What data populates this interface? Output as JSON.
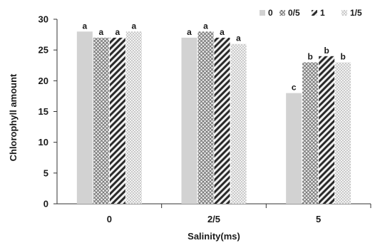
{
  "chart_data": {
    "type": "bar",
    "title": "",
    "xlabel": "Salinity(ms)",
    "ylabel": "Chlorophyll amount",
    "ylim": [
      0,
      30
    ],
    "yticks": [
      "0",
      "5",
      "10",
      "15",
      "20",
      "25",
      "30"
    ],
    "categories": [
      "0",
      "2/5",
      "5"
    ],
    "series": [
      {
        "name": "0",
        "values": [
          28,
          27,
          18
        ],
        "labels": [
          "a",
          "a",
          "c"
        ],
        "pattern": "solid-light"
      },
      {
        "name": "0/5",
        "values": [
          27,
          28,
          23
        ],
        "labels": [
          "a",
          "a",
          "b"
        ],
        "pattern": "crosshatch"
      },
      {
        "name": "1",
        "values": [
          27,
          27,
          24
        ],
        "labels": [
          "a",
          "a",
          "b"
        ],
        "pattern": "diagonal-dark"
      },
      {
        "name": "1/5",
        "values": [
          28,
          26,
          23
        ],
        "labels": [
          "a",
          "a",
          "b"
        ],
        "pattern": "dotted-light"
      }
    ],
    "legend": "top-right",
    "grid": false,
    "colors": {
      "axis": "#333333",
      "solid": "#d2d2d2",
      "hatch": "#555555",
      "dark": "#222222"
    }
  }
}
